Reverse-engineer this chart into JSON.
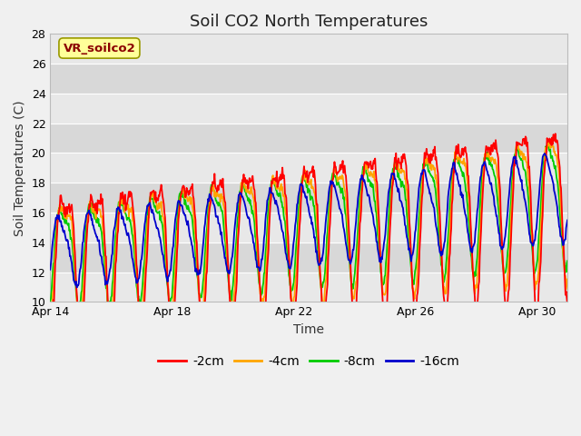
{
  "title": "Soil CO2 North Temperatures",
  "xlabel": "Time",
  "ylabel": "Soil Temperatures (C)",
  "ylim": [
    10,
    28
  ],
  "xlim_start": 0,
  "xlim_end": 17,
  "x_ticks_days": [
    0,
    4,
    8,
    12,
    16
  ],
  "x_tick_labels": [
    "Apr 14",
    "Apr 18",
    "Apr 22",
    "Apr 26",
    "Apr 30"
  ],
  "yticks": [
    10,
    12,
    14,
    16,
    18,
    20,
    22,
    24,
    26,
    28
  ],
  "colors": {
    "-2cm": "#ff0000",
    "-4cm": "#ffa500",
    "-8cm": "#00cc00",
    "-16cm": "#0000cc"
  },
  "label_box_text": "VR_soilco2",
  "label_box_facecolor": "#ffff99",
  "label_box_edgecolor": "#999900",
  "label_box_textcolor": "#8b0000",
  "fig_bg": "#f0f0f0",
  "plot_bg": "#e8e8e8",
  "band_dark": "#d8d8d8",
  "band_light": "#e8e8e8",
  "grid_color": "#ffffff",
  "title_fontsize": 13,
  "axis_label_fontsize": 10,
  "tick_fontsize": 9,
  "legend_fontsize": 10
}
